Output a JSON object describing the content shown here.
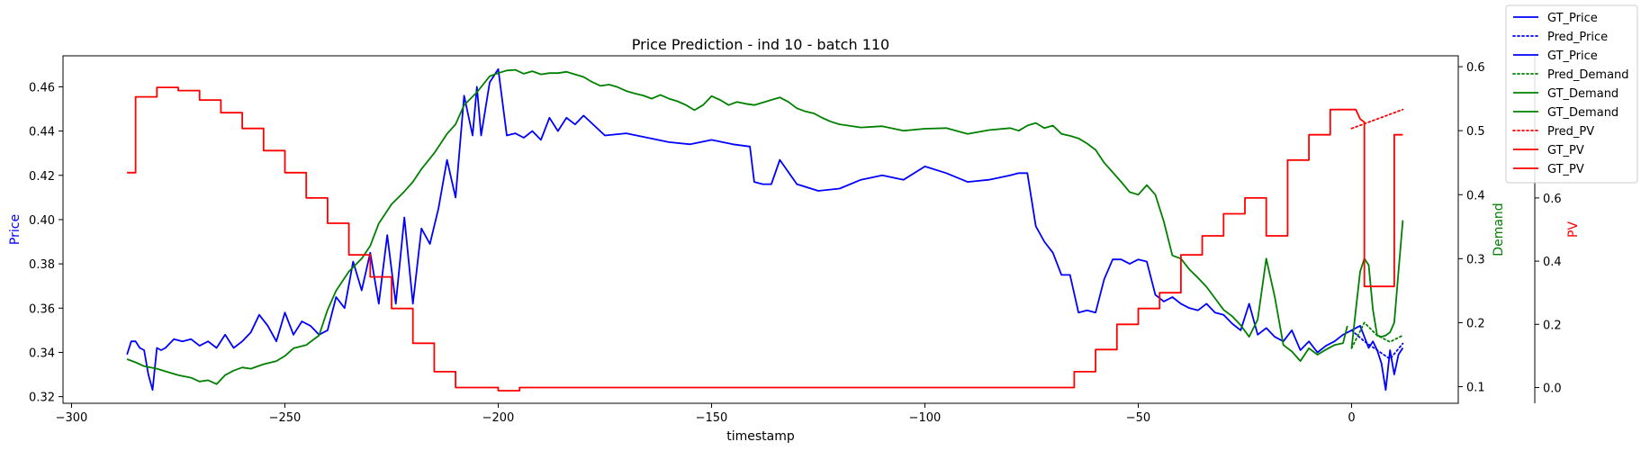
{
  "chart_data": {
    "type": "line",
    "title": "Price Prediction - ind 10 - batch 110",
    "xlabel": "timestamp",
    "xlim": [
      -302,
      25
    ],
    "x_ticks": [
      -300,
      -250,
      -200,
      -150,
      -100,
      -50,
      0
    ],
    "x_tick_labels": [
      "−300",
      "−250",
      "−200",
      "−150",
      "−100",
      "−50",
      "0"
    ],
    "axes": {
      "price": {
        "label": "Price",
        "color": "#0000ff",
        "ylim": [
          0.317,
          0.474
        ],
        "ticks": [
          0.32,
          0.34,
          0.36,
          0.38,
          0.4,
          0.42,
          0.44,
          0.46
        ],
        "tick_labels": [
          "0.32",
          "0.34",
          "0.36",
          "0.38",
          "0.40",
          "0.42",
          "0.44",
          "0.46"
        ]
      },
      "demand": {
        "label": "Demand",
        "color": "#008000",
        "ylim": [
          0.074,
          0.617
        ],
        "ticks": [
          0.1,
          0.2,
          0.3,
          0.4,
          0.5,
          0.6
        ],
        "tick_labels": [
          "0.1",
          "0.2",
          "0.3",
          "0.4",
          "0.5",
          "0.6"
        ]
      },
      "pv": {
        "label": "PV",
        "color": "#ff0000",
        "ylim": [
          -0.05,
          1.05
        ],
        "ticks": [
          0.0,
          0.2,
          0.4,
          0.6
        ],
        "tick_labels": [
          "0.0",
          "0.2",
          "0.4",
          "0.6"
        ]
      }
    },
    "series": [
      {
        "name": "GT_Price",
        "axis": "price",
        "color": "#0000ff",
        "style": "solid",
        "x": [
          -287,
          -286,
          -285,
          -284,
          -283,
          -282,
          -281,
          -280,
          -279,
          -278,
          -276,
          -274,
          -272,
          -270,
          -268,
          -266,
          -264,
          -262,
          -260,
          -258,
          -256,
          -254,
          -252,
          -250,
          -248,
          -246,
          -244,
          -242,
          -240,
          -238,
          -236,
          -234,
          -232,
          -230,
          -228,
          -226,
          -224,
          -222,
          -220,
          -218,
          -216,
          -214,
          -212,
          -210,
          -208,
          -206,
          -205,
          -204,
          -202,
          -200,
          -198,
          -196,
          -194,
          -192,
          -190,
          -188,
          -186,
          -184,
          -182,
          -180,
          -175,
          -170,
          -165,
          -160,
          -155,
          -150,
          -145,
          -141,
          -140,
          -138,
          -136,
          -134,
          -130,
          -125,
          -120,
          -115,
          -110,
          -105,
          -100,
          -95,
          -90,
          -85,
          -80,
          -78,
          -76,
          -74,
          -72,
          -70,
          -68,
          -66,
          -64,
          -62,
          -60,
          -58,
          -56,
          -54,
          -52,
          -50,
          -48,
          -46,
          -44,
          -42,
          -40,
          -38,
          -36,
          -34,
          -32,
          -30,
          -28,
          -26,
          -24,
          -22,
          -20,
          -18,
          -16,
          -14,
          -12,
          -10,
          -8,
          -6,
          -4,
          -2,
          0,
          1,
          2,
          3,
          4,
          5,
          6,
          7,
          8,
          9,
          10,
          11,
          12
        ],
        "values": [
          0.339,
          0.345,
          0.345,
          0.342,
          0.341,
          0.33,
          0.323,
          0.342,
          0.341,
          0.342,
          0.346,
          0.345,
          0.346,
          0.343,
          0.345,
          0.342,
          0.348,
          0.342,
          0.345,
          0.349,
          0.357,
          0.352,
          0.345,
          0.358,
          0.348,
          0.354,
          0.352,
          0.348,
          0.35,
          0.365,
          0.36,
          0.381,
          0.368,
          0.385,
          0.362,
          0.393,
          0.362,
          0.401,
          0.362,
          0.396,
          0.389,
          0.405,
          0.427,
          0.41,
          0.456,
          0.438,
          0.46,
          0.438,
          0.462,
          0.468,
          0.438,
          0.439,
          0.437,
          0.44,
          0.436,
          0.446,
          0.44,
          0.446,
          0.443,
          0.447,
          0.438,
          0.439,
          0.437,
          0.435,
          0.434,
          0.436,
          0.434,
          0.433,
          0.417,
          0.416,
          0.416,
          0.427,
          0.416,
          0.413,
          0.414,
          0.418,
          0.42,
          0.418,
          0.424,
          0.421,
          0.417,
          0.418,
          0.42,
          0.421,
          0.421,
          0.397,
          0.39,
          0.385,
          0.375,
          0.375,
          0.358,
          0.359,
          0.358,
          0.373,
          0.382,
          0.382,
          0.38,
          0.382,
          0.381,
          0.366,
          0.363,
          0.365,
          0.362,
          0.36,
          0.359,
          0.362,
          0.358,
          0.357,
          0.353,
          0.35,
          0.362,
          0.348,
          0.351,
          0.347,
          0.345,
          0.35,
          0.341,
          0.345,
          0.34,
          0.343,
          0.345,
          0.348,
          0.35,
          0.351,
          0.352,
          0.347,
          0.342,
          0.345,
          0.341,
          0.335,
          0.323,
          0.341,
          0.33,
          0.339,
          0.342
        ]
      },
      {
        "name": "Pred_Price",
        "axis": "price",
        "color": "#0000ff",
        "style": "dotted",
        "x": [
          0,
          3,
          6,
          9,
          12
        ],
        "values": [
          0.35,
          0.345,
          0.341,
          0.337,
          0.344
        ]
      },
      {
        "name": "GT_Price",
        "axis": "price",
        "color": "#0000ff",
        "style": "solid",
        "x": [],
        "values": []
      },
      {
        "name": "Pred_Demand",
        "axis": "demand",
        "color": "#008000",
        "style": "dotted",
        "x": [
          0,
          3,
          6,
          9,
          12
        ],
        "values": [
          0.16,
          0.2,
          0.18,
          0.17,
          0.18
        ]
      },
      {
        "name": "GT_Demand",
        "axis": "demand",
        "color": "#008000",
        "style": "solid",
        "x": [
          -287,
          -285,
          -283,
          -280,
          -278,
          -275,
          -272,
          -270,
          -268,
          -266,
          -264,
          -262,
          -260,
          -258,
          -255,
          -252,
          -250,
          -248,
          -245,
          -242,
          -240,
          -238,
          -235,
          -232,
          -230,
          -228,
          -225,
          -222,
          -220,
          -218,
          -215,
          -212,
          -210,
          -208,
          -205,
          -202,
          -200,
          -198,
          -196,
          -194,
          -192,
          -190,
          -188,
          -186,
          -184,
          -182,
          -180,
          -178,
          -176,
          -174,
          -172,
          -170,
          -168,
          -166,
          -164,
          -162,
          -160,
          -158,
          -156,
          -154,
          -152,
          -150,
          -148,
          -146,
          -144,
          -142,
          -140,
          -138,
          -136,
          -134,
          -132,
          -130,
          -128,
          -126,
          -124,
          -122,
          -120,
          -118,
          -115,
          -110,
          -105,
          -100,
          -95,
          -90,
          -85,
          -80,
          -78,
          -76,
          -74,
          -72,
          -70,
          -68,
          -66,
          -64,
          -62,
          -60,
          -58,
          -56,
          -54,
          -52,
          -50,
          -48,
          -46,
          -44,
          -42,
          -40,
          -38,
          -36,
          -34,
          -32,
          -30,
          -28,
          -26,
          -24,
          -22,
          -20,
          -18,
          -16,
          -14,
          -12,
          -10,
          -8,
          -6,
          -4,
          -2,
          -1
        ],
        "values": [
          0.143,
          0.138,
          0.132,
          0.128,
          0.124,
          0.118,
          0.114,
          0.108,
          0.11,
          0.104,
          0.118,
          0.125,
          0.13,
          0.128,
          0.135,
          0.14,
          0.148,
          0.16,
          0.165,
          0.18,
          0.22,
          0.25,
          0.28,
          0.3,
          0.32,
          0.355,
          0.385,
          0.405,
          0.42,
          0.44,
          0.465,
          0.495,
          0.51,
          0.54,
          0.56,
          0.585,
          0.59,
          0.594,
          0.595,
          0.589,
          0.593,
          0.588,
          0.59,
          0.59,
          0.592,
          0.588,
          0.584,
          0.576,
          0.57,
          0.572,
          0.568,
          0.562,
          0.558,
          0.555,
          0.55,
          0.556,
          0.55,
          0.546,
          0.54,
          0.532,
          0.54,
          0.554,
          0.548,
          0.54,
          0.545,
          0.542,
          0.54,
          0.544,
          0.548,
          0.552,
          0.545,
          0.535,
          0.53,
          0.527,
          0.52,
          0.514,
          0.51,
          0.508,
          0.505,
          0.507,
          0.5,
          0.503,
          0.504,
          0.495,
          0.501,
          0.504,
          0.5,
          0.508,
          0.512,
          0.504,
          0.508,
          0.495,
          0.492,
          0.488,
          0.48,
          0.47,
          0.45,
          0.435,
          0.42,
          0.404,
          0.4,
          0.415,
          0.4,
          0.358,
          0.305,
          0.3,
          0.283,
          0.27,
          0.256,
          0.238,
          0.22,
          0.21,
          0.196,
          0.178,
          0.205,
          0.3,
          0.24,
          0.165,
          0.155,
          0.14,
          0.16,
          0.15,
          0.158,
          0.165,
          0.168,
          0.195
        ]
      },
      {
        "name": "GT_Demand",
        "axis": "demand",
        "color": "#008000",
        "style": "solid",
        "x": [
          0,
          1,
          2,
          3,
          4,
          5,
          6,
          7,
          8,
          9,
          10,
          11,
          12
        ],
        "values": [
          0.16,
          0.22,
          0.28,
          0.3,
          0.29,
          0.22,
          0.18,
          0.178,
          0.18,
          0.185,
          0.2,
          0.28,
          0.36
        ]
      },
      {
        "name": "Pred_PV",
        "axis": "pv",
        "color": "#ff0000",
        "style": "dotted",
        "x": [
          0,
          12
        ],
        "values": [
          0.82,
          0.88
        ]
      },
      {
        "name": "GT_PV",
        "axis": "pv",
        "color": "#ff0000",
        "style": "solid",
        "x": [
          -287,
          -285,
          -285,
          -280,
          -280,
          -275,
          -275,
          -270,
          -270,
          -265,
          -265,
          -260,
          -260,
          -255,
          -255,
          -250,
          -250,
          -245,
          -245,
          -240,
          -240,
          -235,
          -235,
          -230,
          -230,
          -225,
          -225,
          -220,
          -220,
          -215,
          -215,
          -210,
          -210,
          -205,
          -205,
          -200,
          -200,
          -195,
          -195,
          -70,
          -70,
          -65,
          -65,
          -60,
          -60,
          -55,
          -55,
          -50,
          -50,
          -45,
          -45,
          -40,
          -40,
          -35,
          -35,
          -30,
          -30,
          -25,
          -25,
          -20,
          -20,
          -15,
          -15,
          -10,
          -10,
          -5,
          -5,
          1,
          1,
          2
        ],
        "values": [
          0.68,
          0.68,
          0.92,
          0.92,
          0.95,
          0.95,
          0.94,
          0.94,
          0.91,
          0.91,
          0.87,
          0.87,
          0.82,
          0.82,
          0.75,
          0.75,
          0.68,
          0.68,
          0.6,
          0.6,
          0.52,
          0.52,
          0.42,
          0.42,
          0.35,
          0.35,
          0.25,
          0.25,
          0.14,
          0.14,
          0.05,
          0.05,
          0.0,
          0.0,
          0.0,
          0.0,
          -0.01,
          -0.01,
          0.0,
          0.0,
          0.0,
          0.0,
          0.05,
          0.05,
          0.12,
          0.12,
          0.2,
          0.2,
          0.25,
          0.25,
          0.3,
          0.3,
          0.42,
          0.42,
          0.48,
          0.48,
          0.55,
          0.55,
          0.6,
          0.6,
          0.48,
          0.48,
          0.72,
          0.72,
          0.8,
          0.8,
          0.88,
          0.88,
          0.88,
          0.85
        ]
      },
      {
        "name": "GT_PV",
        "axis": "pv",
        "color": "#ff0000",
        "style": "solid",
        "x": [
          2,
          3,
          3,
          10,
          10,
          12
        ],
        "values": [
          0.85,
          0.84,
          0.32,
          0.32,
          0.8,
          0.8
        ]
      }
    ],
    "legend": {
      "placement": "upper-right-outside",
      "entries": [
        {
          "name": "GT_Price",
          "color": "#0000ff",
          "style": "solid"
        },
        {
          "name": "Pred_Price",
          "color": "#0000ff",
          "style": "dotted"
        },
        {
          "name": "GT_Price",
          "color": "#0000ff",
          "style": "solid"
        },
        {
          "name": "Pred_Demand",
          "color": "#008000",
          "style": "dotted"
        },
        {
          "name": "GT_Demand",
          "color": "#008000",
          "style": "solid"
        },
        {
          "name": "GT_Demand",
          "color": "#008000",
          "style": "solid"
        },
        {
          "name": "Pred_PV",
          "color": "#ff0000",
          "style": "dotted"
        },
        {
          "name": "GT_PV",
          "color": "#ff0000",
          "style": "solid"
        },
        {
          "name": "GT_PV",
          "color": "#ff0000",
          "style": "solid"
        }
      ]
    }
  }
}
